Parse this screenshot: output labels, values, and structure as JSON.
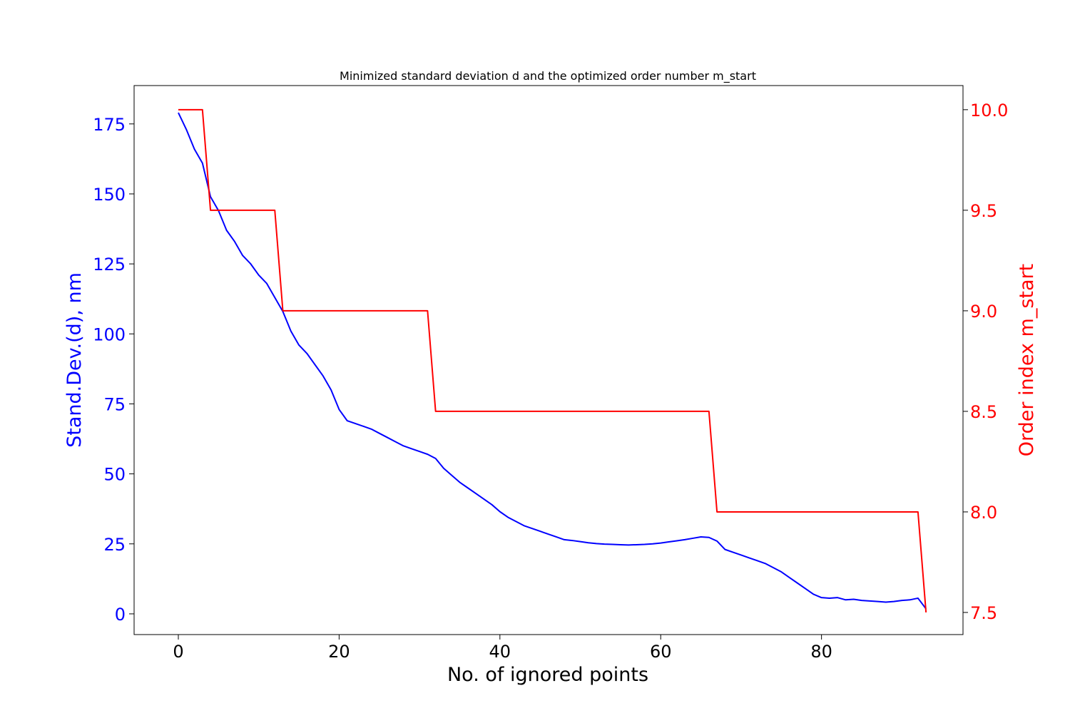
{
  "chart_data": {
    "type": "line",
    "title": "Minimized standard deviation d and the optimized order number m_start",
    "xlabel": "No. of ignored points",
    "ylabel_left": "Stand.Dev.(d), nm",
    "ylabel_right": "Order index m_start",
    "xlim": [
      -5.5,
      97.6
    ],
    "ylim_left": [
      -7.4,
      188.7
    ],
    "ylim_right": [
      7.39,
      10.12
    ],
    "x_ticks": [
      "0",
      "20",
      "40",
      "60",
      "80"
    ],
    "y_left_ticks": [
      "0",
      "25",
      "50",
      "75",
      "100",
      "125",
      "150",
      "175"
    ],
    "y_right_ticks": [
      "7.5",
      "8.0",
      "8.5",
      "9.0",
      "9.5",
      "10.0"
    ],
    "colors": {
      "left_axis": "#0000ff",
      "right_axis": "#ff0000"
    },
    "series": [
      {
        "axis": "left",
        "color": "#0000ff",
        "x": [
          0,
          1,
          2,
          3,
          4,
          5,
          6,
          7,
          8,
          9,
          10,
          11,
          12,
          13,
          14,
          15,
          16,
          17,
          18,
          19,
          20,
          21,
          22,
          23,
          24,
          25,
          26,
          27,
          28,
          29,
          30,
          31,
          32,
          33,
          34,
          35,
          36,
          37,
          38,
          39,
          40,
          41,
          42,
          43,
          44,
          45,
          46,
          47,
          48,
          49,
          50,
          51,
          52,
          53,
          54,
          55,
          56,
          57,
          58,
          59,
          60,
          61,
          62,
          63,
          64,
          65,
          66,
          67,
          68,
          69,
          70,
          71,
          72,
          73,
          74,
          75,
          76,
          77,
          78,
          79,
          80,
          81,
          82,
          83,
          84,
          85,
          86,
          87,
          88,
          89,
          90,
          91,
          92,
          93
        ],
        "y": [
          179,
          173,
          166,
          161,
          149,
          144,
          137,
          133,
          128,
          125,
          121,
          118,
          113,
          108,
          101,
          96,
          93,
          89,
          85,
          80,
          73,
          69,
          68,
          67,
          66,
          64.5,
          63,
          61.5,
          60,
          59,
          58,
          57,
          55.5,
          52,
          49.5,
          47,
          45,
          43,
          41,
          39,
          36.5,
          34.5,
          33,
          31.5,
          30.5,
          29.5,
          28.5,
          27.5,
          26.5,
          26.2,
          25.8,
          25.4,
          25.1,
          24.9,
          24.8,
          24.7,
          24.6,
          24.7,
          24.8,
          25,
          25.3,
          25.7,
          26.1,
          26.5,
          27,
          27.5,
          27.3,
          26,
          23,
          22,
          21,
          20,
          19,
          18,
          16.5,
          15,
          13,
          11,
          9,
          7,
          5.8,
          5.6,
          5.8,
          5,
          5.2,
          4.8,
          4.6,
          4.4,
          4.2,
          4.4,
          4.8,
          5,
          5.6,
          1.8
        ]
      },
      {
        "axis": "right",
        "color": "#ff0000",
        "x": [
          0,
          3,
          4,
          12,
          13,
          31,
          32,
          66,
          67,
          92,
          93
        ],
        "y": [
          10,
          10,
          9.5,
          9.5,
          9,
          9,
          8.5,
          8.5,
          8,
          8,
          7.5
        ]
      }
    ]
  }
}
